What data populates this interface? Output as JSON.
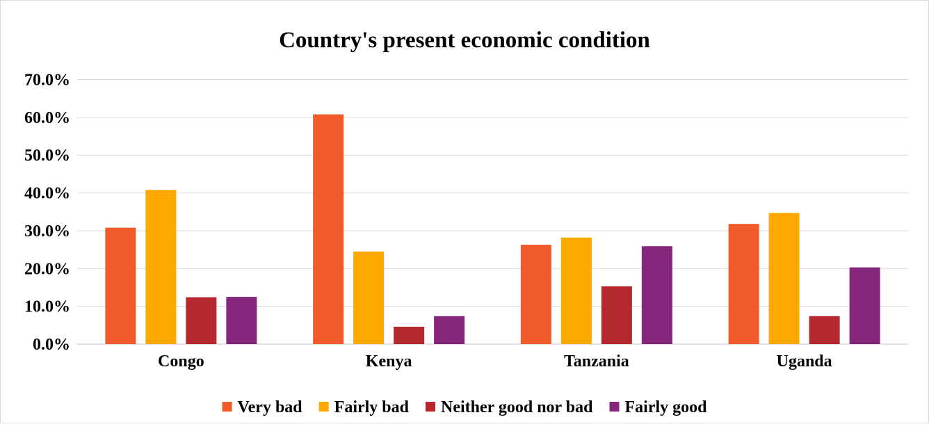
{
  "chart_data": {
    "type": "bar",
    "title": "Country's present economic condition",
    "xlabel": "",
    "ylabel": "",
    "categories": [
      "Congo",
      "Kenya",
      "Tanzania",
      "Uganda"
    ],
    "series": [
      {
        "name": "Very bad",
        "color": "#f15a29",
        "values": [
          30.8,
          60.8,
          26.3,
          31.8
        ]
      },
      {
        "name": "Fairly bad",
        "color": "#ffa800",
        "values": [
          40.8,
          24.5,
          28.2,
          34.7
        ]
      },
      {
        "name": "Neither good nor bad",
        "color": "#b5282e",
        "values": [
          12.4,
          4.6,
          15.3,
          7.4
        ]
      },
      {
        "name": "Fairly good",
        "color": "#84267a",
        "values": [
          12.5,
          7.4,
          25.9,
          20.3
        ]
      }
    ],
    "ylim": [
      0,
      70
    ],
    "yticks": [
      "0.0%",
      "10.0%",
      "20.0%",
      "30.0%",
      "40.0%",
      "50.0%",
      "60.0%",
      "70.0%"
    ],
    "grid": true,
    "legend_position": "bottom"
  }
}
